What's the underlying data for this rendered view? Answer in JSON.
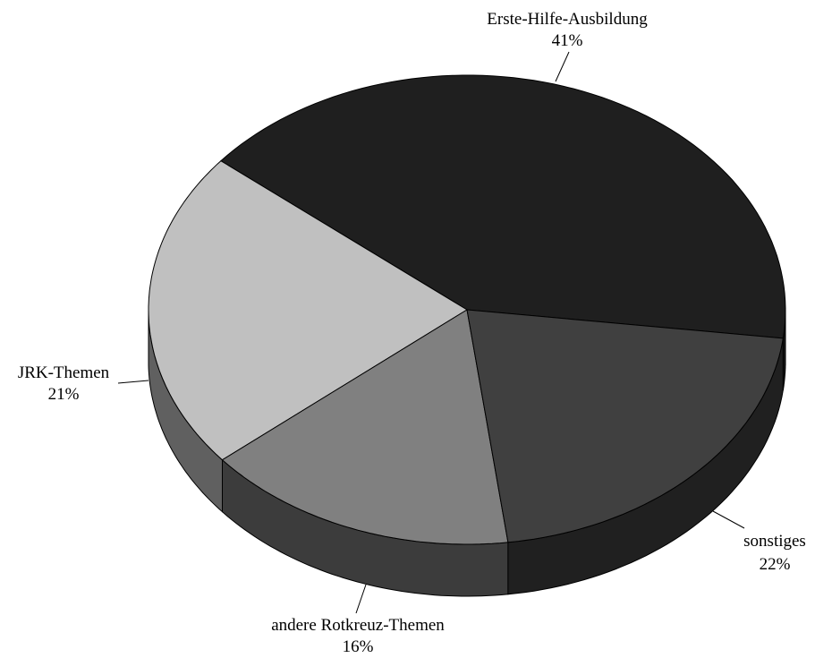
{
  "chart_data": {
    "type": "pie",
    "title": "",
    "slices": [
      {
        "name": "Erste-Hilfe-Ausbildung",
        "value": 41,
        "value_label": "41%",
        "color": "#1f1f1f",
        "side_color": "#161616"
      },
      {
        "name": "sonstiges",
        "value": 22,
        "value_label": "22%",
        "color": "#c0c0c0",
        "side_color": "#606060"
      },
      {
        "name": "andere Rotkreuz-Themen",
        "value": 16,
        "value_label": "16%",
        "color": "#808080",
        "side_color": "#3c3c3c"
      },
      {
        "name": "JRK-Themen",
        "value": 21,
        "value_label": "21%",
        "color": "#404040",
        "side_color": "#202020"
      }
    ],
    "style": "3d-tilted",
    "legend": "none"
  }
}
